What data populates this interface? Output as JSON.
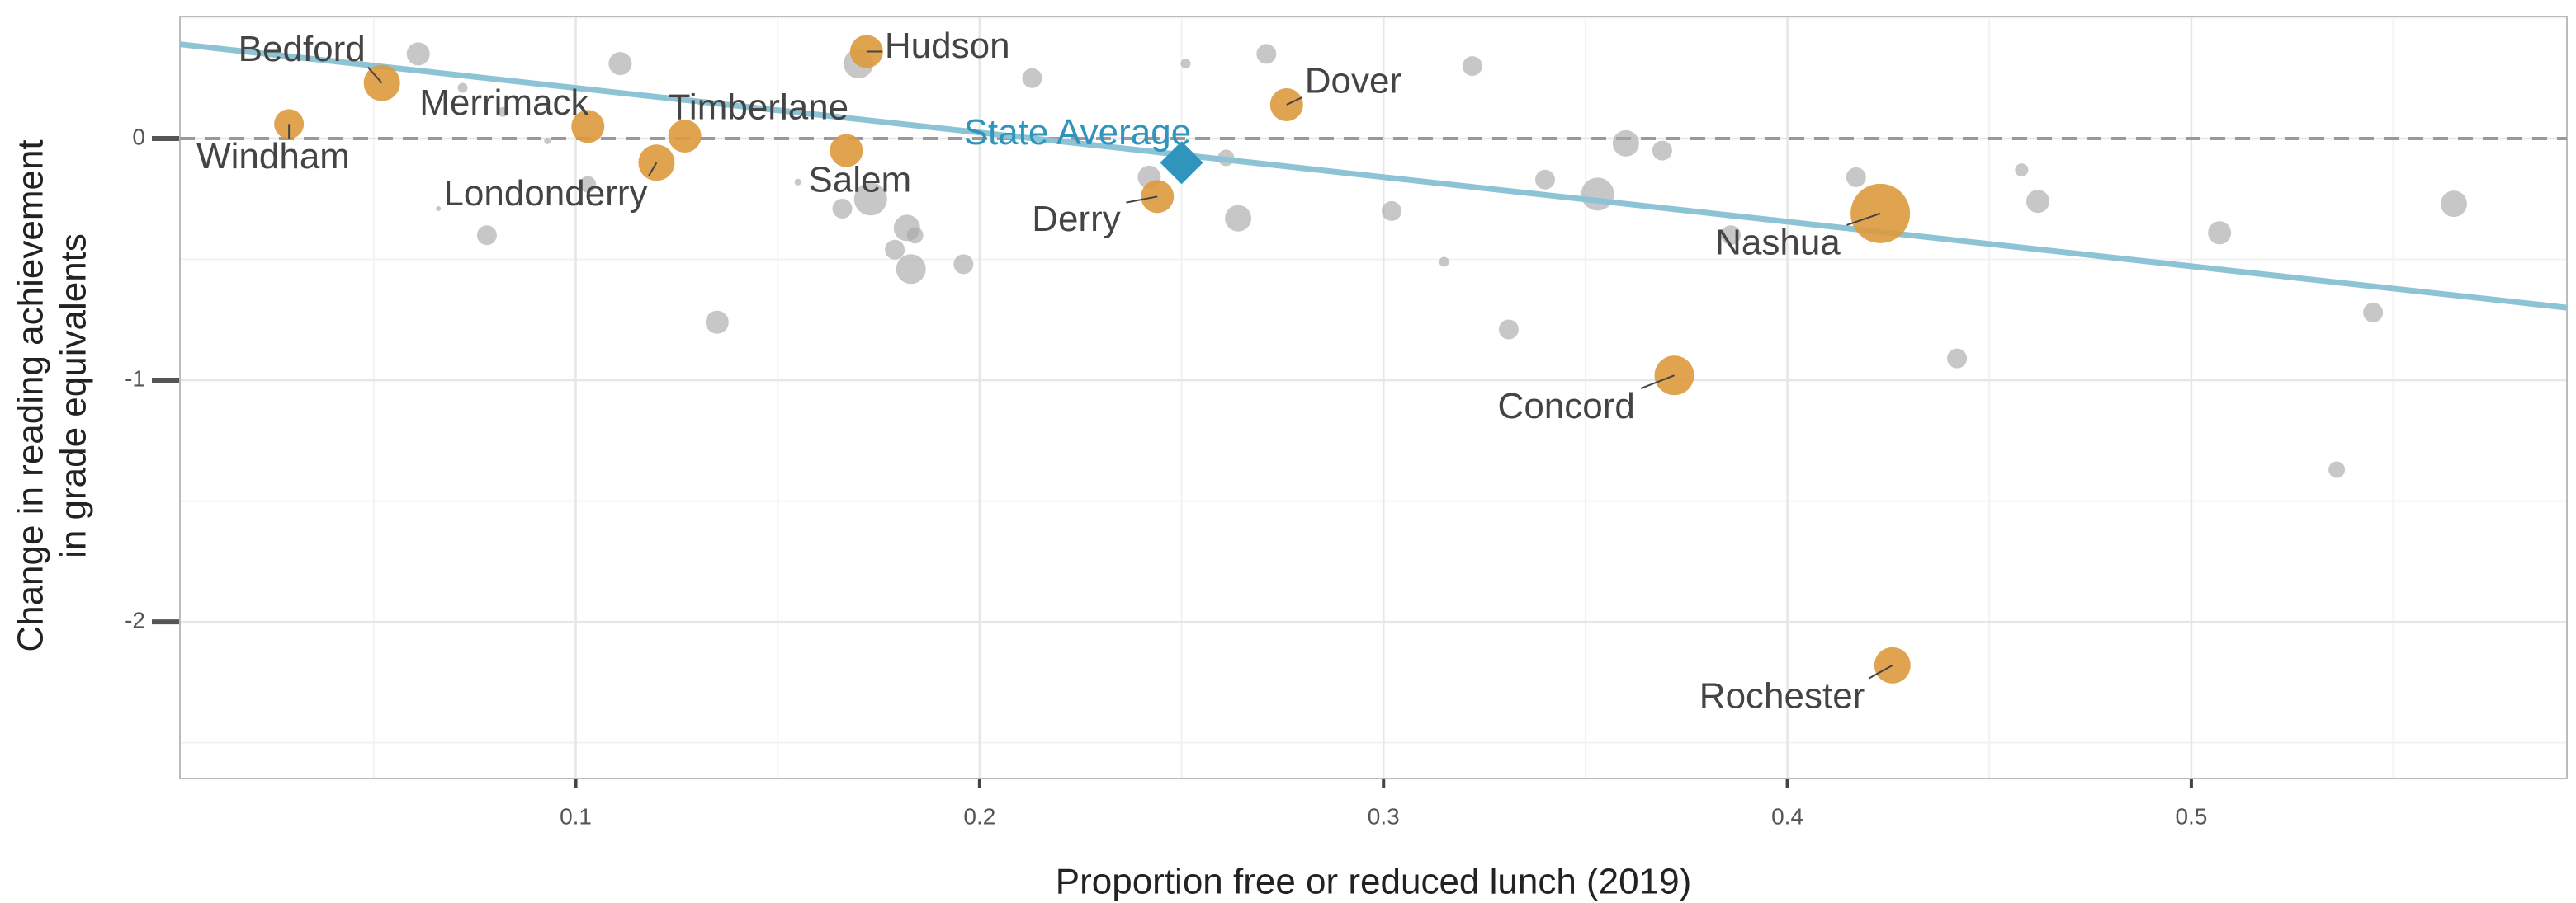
{
  "chart_data": {
    "type": "scatter",
    "xlabel": "Proportion free or reduced lunch (2019)",
    "ylabel": [
      "Change in reading  achievement",
      "in grade equivalents"
    ],
    "xlim": [
      0.002,
      0.593
    ],
    "ylim": [
      -2.648,
      0.505
    ],
    "xticks": [
      0.1,
      0.2,
      0.3,
      0.4,
      0.5
    ],
    "yticks": [
      -2,
      -1,
      0
    ],
    "grid": true,
    "hline": 0,
    "other": {
      "color": "#a9a9a9",
      "x": [
        0.061,
        0.111,
        0.072,
        0.082,
        0.093,
        0.103,
        0.066,
        0.078,
        0.135,
        0.155,
        0.166,
        0.17,
        0.173,
        0.179,
        0.182,
        0.184,
        0.183,
        0.196,
        0.213,
        0.242,
        0.251,
        0.261,
        0.264,
        0.271,
        0.302,
        0.315,
        0.322,
        0.331,
        0.34,
        0.353,
        0.36,
        0.369,
        0.386,
        0.417,
        0.442,
        0.458,
        0.462,
        0.507,
        0.545,
        0.536,
        0.565
      ],
      "y": [
        0.35,
        0.31,
        0.21,
        0.11,
        -0.01,
        -0.19,
        -0.29,
        -0.4,
        -0.76,
        -0.18,
        -0.29,
        0.31,
        -0.25,
        -0.46,
        -0.37,
        -0.4,
        -0.54,
        -0.52,
        0.25,
        -0.16,
        0.31,
        -0.08,
        -0.33,
        0.35,
        -0.3,
        -0.51,
        0.3,
        -0.79,
        -0.17,
        -0.23,
        -0.02,
        -0.05,
        -0.4,
        -0.16,
        -0.91,
        -0.13,
        -0.26,
        -0.39,
        -0.72,
        -1.37,
        -0.27
      ],
      "sizes": [
        7,
        7,
        3,
        3,
        2,
        5,
        1.5,
        6,
        7,
        2,
        6,
        9,
        10,
        6,
        8,
        5,
        9,
        6,
        6,
        7,
        3,
        5,
        8,
        6,
        6,
        3,
        6,
        6,
        6,
        10,
        8,
        6,
        6,
        6,
        6,
        4,
        7,
        7,
        6,
        5,
        8
      ]
    },
    "highlighted": {
      "color": "#dd9a3e",
      "labels": [
        "Windham",
        "Bedford",
        "Merrimack",
        "Timberlane",
        "Londonderry",
        "Salem",
        "Hudson",
        "Derry",
        "Dover",
        "Concord",
        "Nashua",
        "Rochester"
      ],
      "x": [
        0.029,
        0.052,
        0.103,
        0.127,
        0.12,
        0.167,
        0.172,
        0.244,
        0.276,
        0.372,
        0.423,
        0.426
      ],
      "y": [
        0.06,
        0.23,
        0.05,
        0.01,
        -0.1,
        -0.05,
        0.36,
        -0.24,
        0.14,
        -0.98,
        -0.31,
        -2.18
      ],
      "sizes": [
        9,
        11,
        10,
        10,
        11,
        10,
        10,
        10,
        10,
        12,
        18,
        11
      ]
    },
    "state_average": {
      "label": "State Average",
      "x": 0.25,
      "y": -0.1,
      "color": "#2f95bd"
    },
    "trend": {
      "x": [
        0.002,
        0.593
      ],
      "y": [
        0.39,
        -0.7
      ],
      "color": "#8cc3d5"
    }
  }
}
